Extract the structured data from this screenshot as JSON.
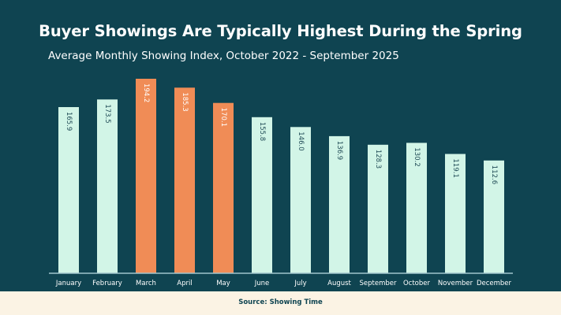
{
  "header": {
    "title": "Buyer Showings Are Typically Highest During the Spring",
    "subtitle": "Average Monthly Showing Index, October 2022 - September 2025"
  },
  "footer": {
    "source": "Source: Showing Time"
  },
  "colors": {
    "background": "#0f4451",
    "bar_default": "#d2f5e7",
    "bar_highlight": "#f08c56",
    "axis": "#9fc3cc",
    "footer_bg": "#fbf3e4"
  },
  "chart_data": {
    "type": "bar",
    "title": "Buyer Showings Are Typically Highest During the Spring",
    "subtitle": "Average Monthly Showing Index, October 2022 - September 2025",
    "categories": [
      "January",
      "February",
      "March",
      "April",
      "May",
      "June",
      "July",
      "August",
      "September",
      "October",
      "November",
      "December"
    ],
    "values": [
      165.9,
      173.5,
      194.2,
      185.3,
      170.1,
      155.8,
      146.0,
      136.9,
      128.3,
      130.2,
      119.1,
      112.6
    ],
    "value_labels": [
      "165.9",
      "173.5",
      "194.2",
      "185.3",
      "170.1",
      "155.8",
      "146.0",
      "136.9",
      "128.3",
      "130.2",
      "119.1",
      "112.6"
    ],
    "highlighted": [
      "March",
      "April",
      "May"
    ],
    "ylim": [
      0,
      194.2
    ],
    "grid": false,
    "legend": "none",
    "xlabel": "",
    "ylabel": ""
  }
}
